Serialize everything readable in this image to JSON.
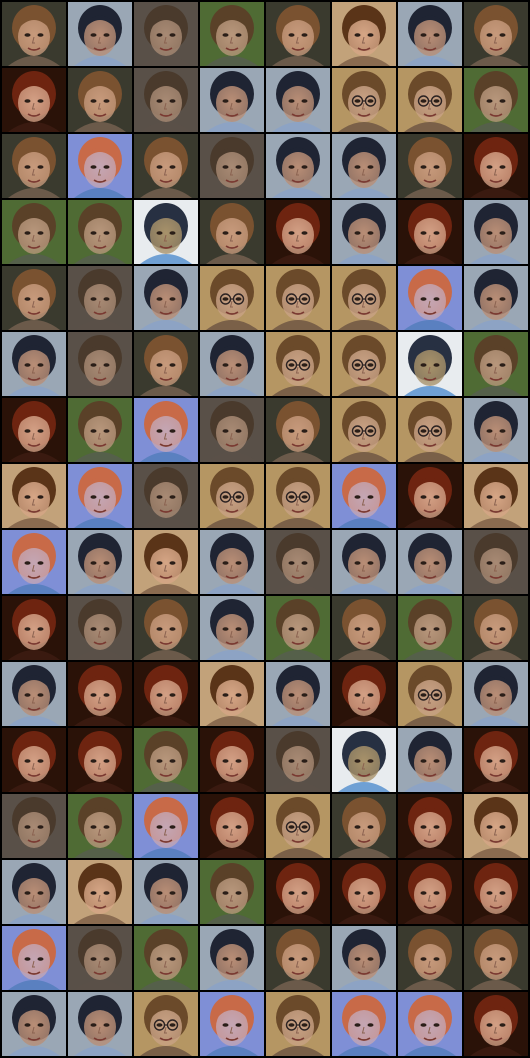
{
  "grid": {
    "rows": 16,
    "cols": 8
  },
  "archetypes": {
    "A": {
      "label": "light-brown-hair-face",
      "bg": "#3a3a2e",
      "hair": "#7a5230",
      "skin": "#c79a7c",
      "shirt": "#6b5a4a"
    },
    "B": {
      "label": "dark-hair-child-face",
      "bg": "#9aa7b5",
      "hair": "#1f2433",
      "skin": "#b98e76",
      "shirt": "#8da3c4"
    },
    "C": {
      "label": "grey-brown-face",
      "bg": "#595048",
      "hair": "#4a3a2c",
      "skin": "#a88a74",
      "shirt": "#5a5048"
    },
    "D": {
      "label": "green-background-face",
      "bg": "#4f6b34",
      "hair": "#5a4128",
      "skin": "#b8977c",
      "shirt": "#55604a"
    },
    "E": {
      "label": "red-hair-woman-face",
      "bg": "#2a1208",
      "hair": "#6e2410",
      "skin": "#d3a085",
      "shirt": "#3a1a10"
    },
    "F": {
      "label": "glasses-woman-face",
      "bg": "#b59663",
      "hair": "#6b4a2a",
      "skin": "#c9a285",
      "shirt": "#7a6048",
      "glasses": true
    },
    "G": {
      "label": "woman-tan-background-face",
      "bg": "#c2a27a",
      "hair": "#5a3418",
      "skin": "#d6a686",
      "shirt": "#8a6b50"
    },
    "H": {
      "label": "purple-blue-overexposed-face",
      "bg": "#7f8fd6",
      "hair": "#c86a48",
      "skin": "#c4a6b4",
      "shirt": "#5a80c0"
    },
    "I": {
      "label": "blue-shirt-child-face",
      "bg": "#e8ecef",
      "hair": "#273042",
      "skin": "#a8926a",
      "shirt": "#6fa0d4"
    }
  },
  "tiles": [
    "A",
    "B",
    "C",
    "D",
    "A",
    "G",
    "B",
    "A",
    "E",
    "A",
    "C",
    "B",
    "B",
    "F",
    "F",
    "D",
    "A",
    "H",
    "A",
    "C",
    "B",
    "B",
    "A",
    "E",
    "D",
    "D",
    "I",
    "A",
    "E",
    "B",
    "E",
    "B",
    "A",
    "C",
    "B",
    "F",
    "F",
    "F",
    "H",
    "B",
    "B",
    "C",
    "A",
    "B",
    "F",
    "F",
    "I",
    "D",
    "E",
    "D",
    "H",
    "C",
    "A",
    "F",
    "F",
    "B",
    "G",
    "H",
    "C",
    "F",
    "F",
    "H",
    "E",
    "G",
    "H",
    "B",
    "G",
    "B",
    "C",
    "B",
    "B",
    "C",
    "E",
    "C",
    "A",
    "B",
    "D",
    "A",
    "D",
    "A",
    "B",
    "E",
    "E",
    "G",
    "B",
    "E",
    "F",
    "B",
    "E",
    "E",
    "D",
    "E",
    "C",
    "I",
    "B",
    "E",
    "C",
    "D",
    "H",
    "E",
    "F",
    "A",
    "E",
    "G",
    "B",
    "G",
    "B",
    "D",
    "E",
    "E",
    "E",
    "E",
    "H",
    "C",
    "D",
    "B",
    "A",
    "B",
    "A",
    "A",
    "B",
    "B",
    "F",
    "H",
    "F",
    "H",
    "H",
    "E"
  ]
}
